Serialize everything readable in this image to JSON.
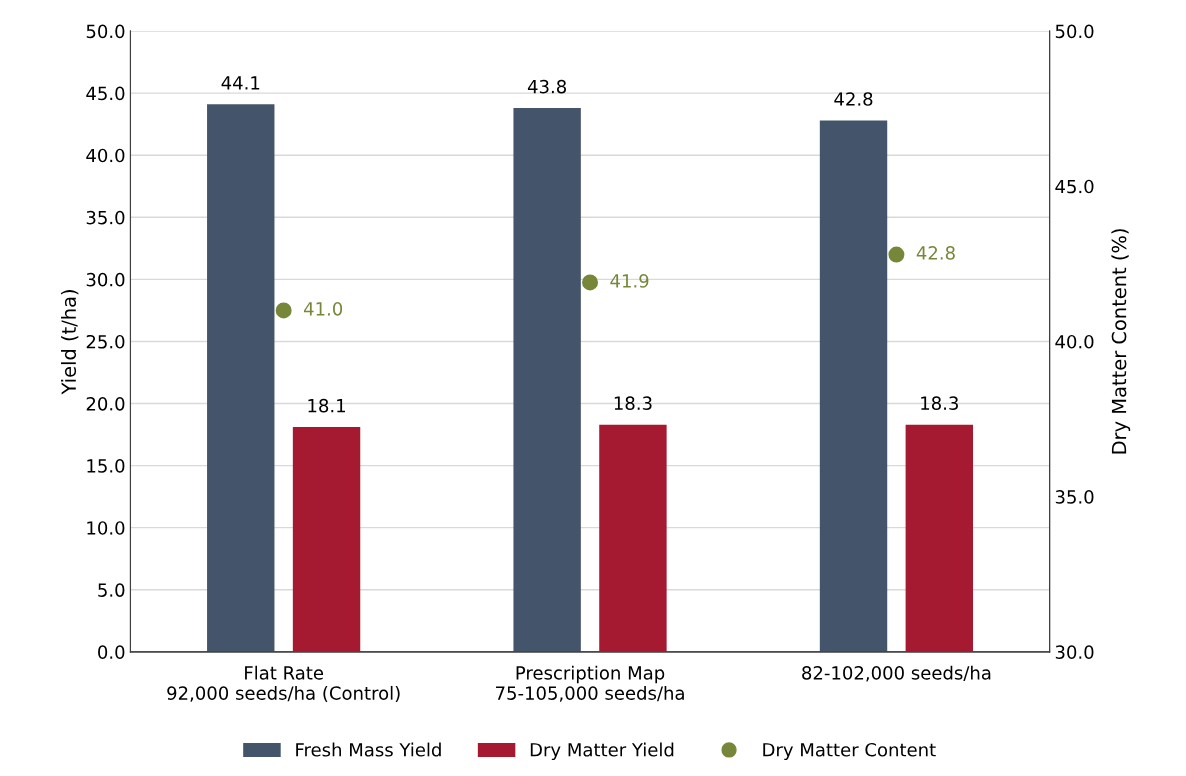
{
  "chart_data": {
    "type": "bar",
    "categories": [
      "Flat Rate\n92,000 seeds/ha (Control)",
      "Prescription Map\n75-105,000 seeds/ha",
      "82-102,000 seeds/ha"
    ],
    "series": [
      {
        "name": "Fresh Mass Yield",
        "color": "#44546a",
        "values": [
          44.1,
          43.8,
          42.8
        ],
        "value_labels": [
          "44.1",
          "43.8",
          "42.8"
        ]
      },
      {
        "name": "Dry Matter Yield",
        "color": "#a51931",
        "values": [
          18.1,
          18.3,
          18.3
        ],
        "value_labels": [
          "18.1",
          "18.3",
          "18.3"
        ]
      },
      {
        "name": "Dry Matter Content",
        "color": "#76873a",
        "type": "scatter",
        "axis": "y2",
        "values": [
          41.0,
          41.9,
          42.8
        ],
        "value_labels": [
          "41.0",
          "41.9",
          "42.8"
        ]
      }
    ],
    "ylabel": "Yield (t/ha)",
    "y2label": "Dry Matter Content (%)",
    "ylim": [
      0,
      50
    ],
    "yticks": [
      {
        "value": 0,
        "label": "0.0"
      },
      {
        "value": 5,
        "label": "5.0"
      },
      {
        "value": 10,
        "label": "10.0"
      },
      {
        "value": 15,
        "label": "15.0"
      },
      {
        "value": 20,
        "label": "20.0"
      },
      {
        "value": 25,
        "label": "25.0"
      },
      {
        "value": 30,
        "label": "30.0"
      },
      {
        "value": 35,
        "label": "35.0"
      },
      {
        "value": 40,
        "label": "40.0"
      },
      {
        "value": 45,
        "label": "45.0"
      },
      {
        "value": 50,
        "label": "50.0"
      }
    ],
    "y2lim": [
      30,
      50
    ],
    "y2ticks": [
      {
        "value": 30,
        "label": "30.0"
      },
      {
        "value": 35,
        "label": "35.0"
      },
      {
        "value": 40,
        "label": "40.0"
      },
      {
        "value": 45,
        "label": "45.0"
      },
      {
        "value": 50,
        "label": "50.0"
      }
    ],
    "grid": "y",
    "legend": "bottom",
    "marker": "circle"
  }
}
